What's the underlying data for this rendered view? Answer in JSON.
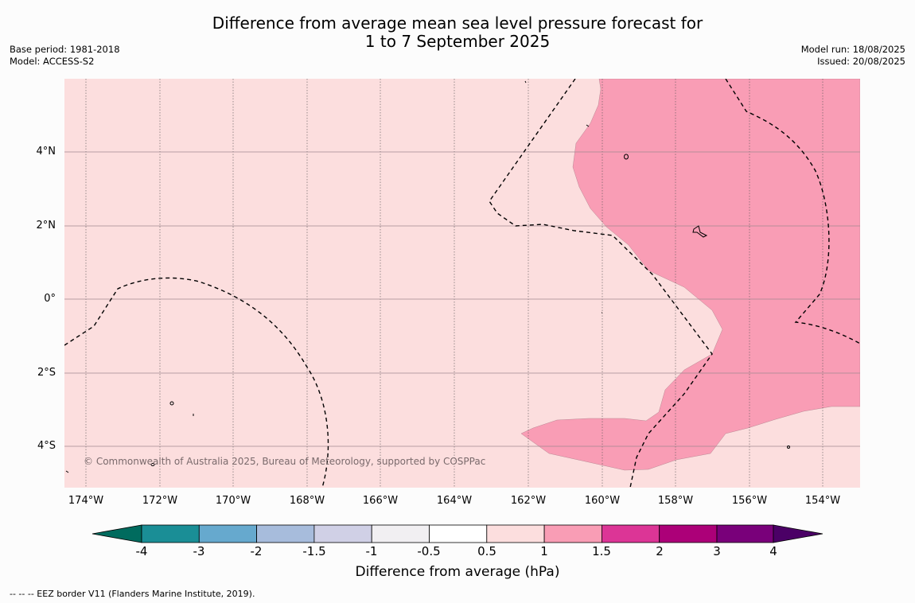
{
  "title_line1": "Difference from average mean sea level pressure forecast for",
  "title_line2": "1 to 7 September 2025",
  "base_period": "Base period: 1981-2018",
  "model": "Model: ACCESS-S2",
  "model_run": "Model run: 18/08/2025",
  "issued": "Issued: 20/08/2025",
  "copyright": "© Commonwealth of Australia 2025, Bureau of Meteorology, supported by COSPPac",
  "lat_labels": [
    "4°N",
    "2°N",
    "0°",
    "2°S",
    "4°S"
  ],
  "lon_labels": [
    "174°W",
    "172°W",
    "170°W",
    "168°W",
    "166°W",
    "164°W",
    "162°W",
    "160°W",
    "158°W",
    "156°W",
    "154°W"
  ],
  "colorbar": {
    "ticks": [
      "-4",
      "-3",
      "-2",
      "-1.5",
      "-1",
      "-0.5",
      "0.5",
      "1",
      "1.5",
      "2",
      "3",
      "4"
    ],
    "colors": [
      "#006b5e",
      "#1a8e96",
      "#66a9ce",
      "#a7bcdc",
      "#d0d0e6",
      "#f1eff2",
      "#ffffff",
      "#fcdede",
      "#f99db5",
      "#dc3596",
      "#ac0078",
      "#79007a",
      "#4b0066"
    ],
    "label": "Difference from average (hPa)"
  },
  "footnote": "-- -- -- EEZ border V11 (Flanders Marine Institute, 2019).",
  "field_colors": {
    "background": "#fcdede",
    "anomaly_1_to_1_5": "#f99db5"
  }
}
